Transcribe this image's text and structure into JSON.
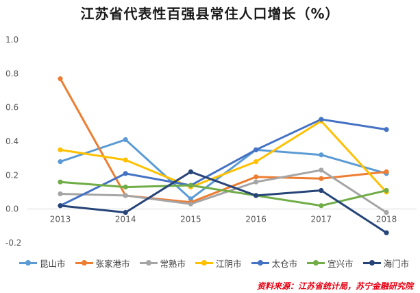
{
  "chart_data": {
    "type": "line",
    "title": "江苏省代表性百强县常住人口增长（%）",
    "xlabel": "",
    "ylabel": "",
    "categories": [
      "2013",
      "2014",
      "2015",
      "2016",
      "2017",
      "2018"
    ],
    "ylim": [
      -0.2,
      1.0
    ],
    "yticks": [
      "-0.2",
      "0.0",
      "0.2",
      "0.4",
      "0.6",
      "0.8",
      "1.0"
    ],
    "grid": false,
    "legend": "bottom",
    "series": [
      {
        "name": "昆山市",
        "color": "#5b9bd5",
        "values": [
          0.28,
          0.41,
          0.06,
          0.35,
          0.32,
          0.21
        ]
      },
      {
        "name": "张家港市",
        "color": "#ed7d31",
        "values": [
          0.77,
          0.08,
          0.04,
          0.19,
          0.18,
          0.22
        ]
      },
      {
        "name": "常熟市",
        "color": "#a5a5a5",
        "values": [
          0.09,
          0.08,
          0.03,
          0.16,
          0.23,
          -0.02
        ]
      },
      {
        "name": "江阴市",
        "color": "#ffc000",
        "values": [
          0.35,
          0.29,
          0.13,
          0.28,
          0.52,
          0.1
        ]
      },
      {
        "name": "太仓市",
        "color": "#4472c4",
        "values": [
          0.02,
          0.21,
          0.14,
          0.35,
          0.53,
          0.47
        ]
      },
      {
        "name": "宜兴市",
        "color": "#70ad47",
        "values": [
          0.16,
          0.13,
          0.14,
          0.08,
          0.02,
          0.11
        ]
      },
      {
        "name": "海门市",
        "color": "#264478",
        "values": [
          0.02,
          -0.02,
          0.22,
          0.08,
          0.11,
          -0.14
        ]
      }
    ]
  },
  "source_note": "资料来源：江苏省统计局，苏宁金融研究院"
}
